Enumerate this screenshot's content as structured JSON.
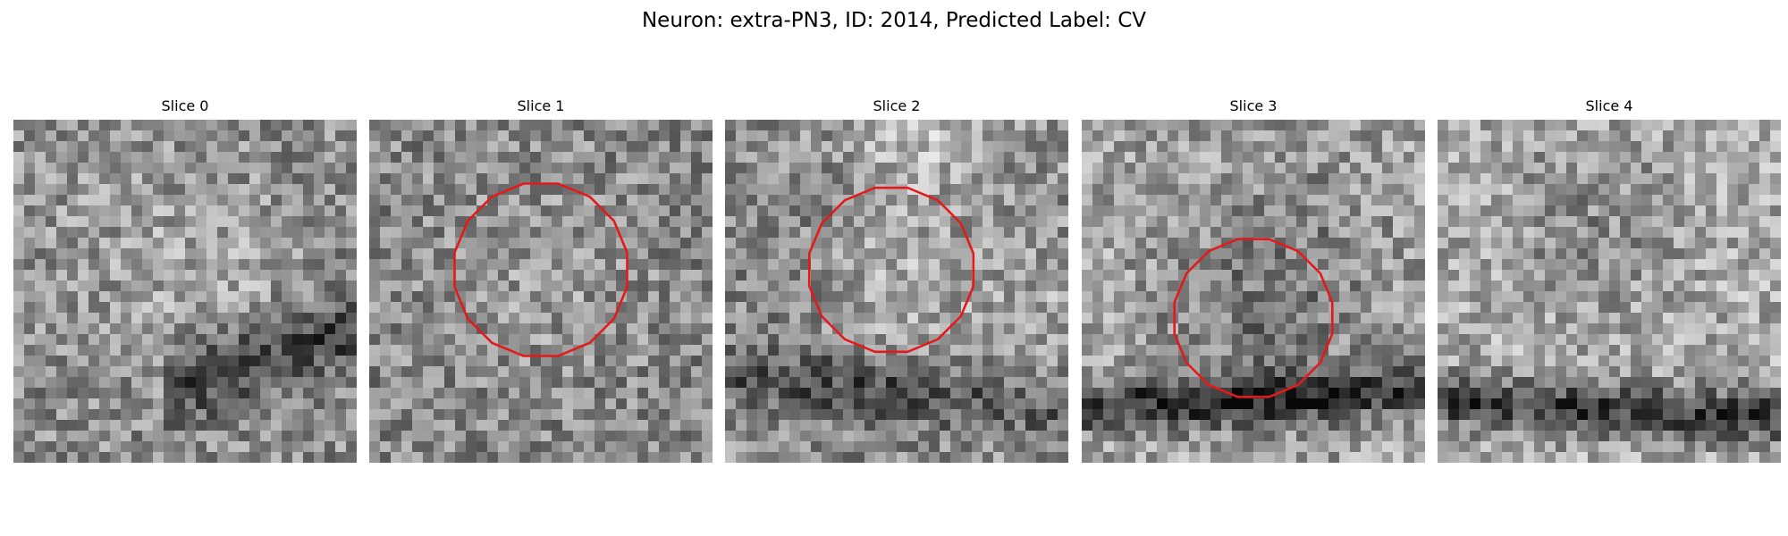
{
  "figure": {
    "title": "Neuron: extra-PN3, ID: 2014, Predicted Label: CV"
  },
  "contour_color": "#e31a1c",
  "grid_size": 32,
  "panels": [
    {
      "title": "Slice 0",
      "seed": 11,
      "mean": 140,
      "blobs": [
        {
          "cx": 18,
          "cy": 14,
          "r": 6,
          "amp": 25
        },
        {
          "cx": 6,
          "cy": 8,
          "r": 8,
          "amp": 10
        }
      ],
      "bands": [
        {
          "y0": 24,
          "slope": -0.35,
          "width": 2.5,
          "amp": -80,
          "xmin": 14,
          "xmax": 32
        }
      ],
      "contour": null
    },
    {
      "title": "Slice 1",
      "seed": 23,
      "mean": 135,
      "blobs": [
        {
          "cx": 15,
          "cy": 14,
          "r": 7,
          "amp": 20
        }
      ],
      "bands": [],
      "contour": {
        "cx": 16,
        "cy": 14,
        "r": 8.2
      }
    },
    {
      "title": "Slice 2",
      "seed": 37,
      "mean": 145,
      "blobs": [
        {
          "cx": 15,
          "cy": 15,
          "r": 5.5,
          "amp": 80
        },
        {
          "cx": 15,
          "cy": 15,
          "r": 8,
          "amp": -55
        },
        {
          "cx": 17,
          "cy": 1,
          "r": 5,
          "amp": 50
        },
        {
          "cx": 27,
          "cy": 18,
          "r": 6,
          "amp": 30
        }
      ],
      "bands": [
        {
          "y0": 25,
          "slope": 0.1,
          "width": 2,
          "amp": -60,
          "xmin": 0,
          "xmax": 32
        }
      ],
      "contour": {
        "cx": 15.5,
        "cy": 14,
        "r": 7.8
      }
    },
    {
      "title": "Slice 3",
      "seed": 49,
      "mean": 165,
      "blobs": [
        {
          "cx": 16,
          "cy": 19,
          "r": 7,
          "amp": -40
        },
        {
          "cx": 20,
          "cy": 9,
          "r": 7,
          "amp": -20
        }
      ],
      "bands": [
        {
          "y0": 25.5,
          "slope": -0.05,
          "width": 1.6,
          "amp": -110,
          "xmin": 0,
          "xmax": 32
        }
      ],
      "contour": {
        "cx": 16,
        "cy": 18.5,
        "r": 7.5
      }
    },
    {
      "title": "Slice 4",
      "seed": 61,
      "mean": 170,
      "blobs": [
        {
          "cx": 14,
          "cy": 9,
          "r": 6,
          "amp": -30
        }
      ],
      "bands": [
        {
          "y0": 26.5,
          "slope": 0.05,
          "width": 1.7,
          "amp": -110,
          "xmin": 0,
          "xmax": 32
        }
      ],
      "contour": null
    }
  ]
}
